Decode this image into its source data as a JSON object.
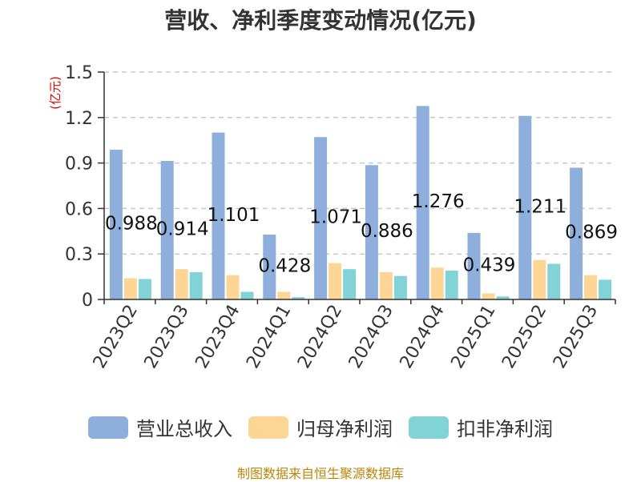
{
  "title": "营收、净利季度变动情况(亿元)",
  "source": "制图数据来自恒生聚源数据库",
  "colors": {
    "revenue": "#8eaedb",
    "net_profit": "#fdd595",
    "deducted_profit": "#82d3d6",
    "unit": "#e00000",
    "grid": "#c8c8c8",
    "axis": "#333333",
    "title": "#333333",
    "source": "#b8860b"
  },
  "chart_data": {
    "type": "bar",
    "title": "营收、净利季度变动情况(亿元)",
    "ylabel": "(亿元)",
    "xlabel": "",
    "ylim": [
      0,
      1.5
    ],
    "yticks": [
      0,
      0.3,
      0.6,
      0.9,
      1.2,
      1.5
    ],
    "ytick_labels": [
      "0",
      "0.3",
      "0.6",
      "0.9",
      "1.2",
      "1.5"
    ],
    "grid": true,
    "legend_position": "bottom",
    "categories": [
      "2023Q2",
      "2023Q3",
      "2023Q4",
      "2024Q1",
      "2024Q2",
      "2024Q3",
      "2024Q4",
      "2025Q1",
      "2025Q2",
      "2025Q3"
    ],
    "series": [
      {
        "name": "营业总收入",
        "values": [
          0.988,
          0.914,
          1.101,
          0.428,
          1.071,
          0.886,
          1.276,
          0.439,
          1.211,
          0.869
        ]
      },
      {
        "name": "归母净利润",
        "values": [
          0.14,
          0.2,
          0.16,
          0.05,
          0.24,
          0.18,
          0.21,
          0.04,
          0.26,
          0.16
        ]
      },
      {
        "name": "扣非净利润",
        "values": [
          0.135,
          0.18,
          0.05,
          0.015,
          0.2,
          0.155,
          0.19,
          0.02,
          0.235,
          0.13
        ]
      }
    ],
    "data_labels": [
      "0.988",
      "0.914",
      "1.101",
      "0.428",
      "1.071",
      "0.886",
      "1.276",
      "0.439",
      "1.211",
      "0.869"
    ]
  }
}
